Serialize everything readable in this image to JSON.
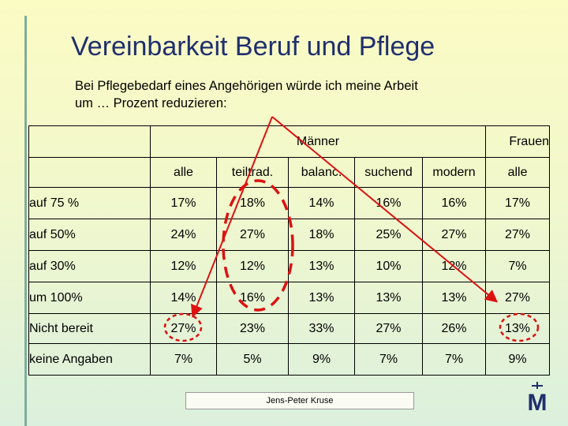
{
  "slide": {
    "title": "Vereinbarkeit Beruf und Pflege",
    "subtitle_line1": "Bei Pflegebedarf eines Angehörigen würde ich meine Arbeit",
    "subtitle_line2": "um … Prozent reduzieren:",
    "footer": "Jens-Peter Kruse",
    "logo_letter": "M",
    "accent_color": "#1f2f6e",
    "annotation_color": "#dd1111"
  },
  "table": {
    "group_men": "Männer",
    "group_women": "Frauen",
    "columns": [
      "alle",
      "teiltrad.",
      "balanc.",
      "suchend",
      "modern",
      "alle"
    ],
    "rows": [
      {
        "label": "auf 75 %",
        "values": [
          "17%",
          "18%",
          "14%",
          "16%",
          "16%",
          "17%"
        ]
      },
      {
        "label": "auf 50%",
        "values": [
          "24%",
          "27%",
          "18%",
          "25%",
          "27%",
          "27%"
        ]
      },
      {
        "label": "auf 30%",
        "values": [
          "12%",
          "12%",
          "13%",
          "10%",
          "12%",
          "7%"
        ]
      },
      {
        "label": "um 100%",
        "values": [
          "14%",
          "16%",
          "13%",
          "13%",
          "13%",
          "27%"
        ]
      },
      {
        "label": "Nicht bereit",
        "values": [
          "27%",
          "23%",
          "33%",
          "27%",
          "26%",
          "13%"
        ]
      },
      {
        "label": "keine Angaben",
        "values": [
          "7%",
          "5%",
          "9%",
          "7%",
          "7%",
          "9%"
        ]
      }
    ]
  }
}
